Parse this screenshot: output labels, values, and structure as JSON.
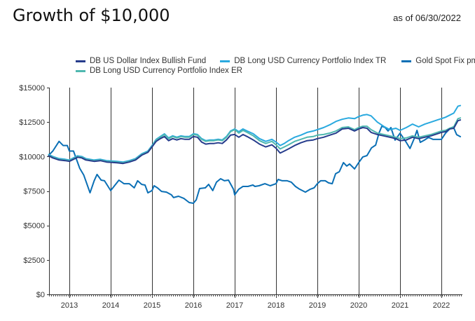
{
  "header": {
    "title": "Growth of $10,000",
    "as_of": "as of 06/30/2022"
  },
  "chart_data": {
    "type": "line",
    "title": "Growth of $10,000",
    "subtitle": "as of 06/30/2022",
    "xlabel": "",
    "ylabel": "",
    "xlim": [
      2012.5,
      2022.5
    ],
    "ylim": [
      0,
      15000
    ],
    "x_ticks": [
      2013,
      2014,
      2015,
      2016,
      2017,
      2018,
      2019,
      2020,
      2021,
      2022
    ],
    "x_tick_labels": [
      "2013",
      "2014",
      "2015",
      "2016",
      "2017",
      "2018",
      "2019",
      "2020",
      "2021",
      "2022"
    ],
    "y_ticks": [
      0,
      2500,
      5000,
      7500,
      10000,
      12500,
      15000
    ],
    "y_tick_labels": [
      "$0",
      "$2500",
      "$5000",
      "$7500",
      "$10000",
      "$12500",
      "$15000"
    ],
    "grid": "vertical lines at year ticks",
    "legend_position": "top",
    "series": [
      {
        "name": "DB US Dollar Index Bullish Fund",
        "color": "#263c8c",
        "x": [
          2012.5,
          2012.6,
          2012.75,
          2012.9,
          2013.0,
          2013.1,
          2013.2,
          2013.3,
          2013.4,
          2013.5,
          2013.6,
          2013.75,
          2013.9,
          2014.0,
          2014.15,
          2014.3,
          2014.45,
          2014.6,
          2014.75,
          2014.9,
          2015.0,
          2015.1,
          2015.2,
          2015.3,
          2015.4,
          2015.5,
          2015.6,
          2015.7,
          2015.8,
          2015.9,
          2016.0,
          2016.1,
          2016.2,
          2016.3,
          2016.4,
          2016.5,
          2016.6,
          2016.7,
          2016.8,
          2016.9,
          2017.0,
          2017.1,
          2017.2,
          2017.3,
          2017.45,
          2017.6,
          2017.75,
          2017.9,
          2018.0,
          2018.1,
          2018.2,
          2018.3,
          2018.45,
          2018.6,
          2018.75,
          2018.9,
          2019.0,
          2019.15,
          2019.3,
          2019.45,
          2019.6,
          2019.75,
          2019.9,
          2020.0,
          2020.1,
          2020.2,
          2020.3,
          2020.45,
          2020.6,
          2020.75,
          2020.9,
          2021.0,
          2021.15,
          2021.3,
          2021.45,
          2021.6,
          2021.75,
          2021.9,
          2022.0,
          2022.1,
          2022.2,
          2022.3,
          2022.4,
          2022.46
        ],
        "values": [
          10050,
          9900,
          9750,
          9700,
          9650,
          9800,
          9950,
          9900,
          9750,
          9700,
          9650,
          9700,
          9600,
          9580,
          9550,
          9500,
          9600,
          9750,
          10100,
          10300,
          10700,
          11100,
          11300,
          11450,
          11150,
          11300,
          11200,
          11300,
          11250,
          11250,
          11450,
          11400,
          11050,
          10900,
          10950,
          10950,
          11000,
          10950,
          11200,
          11550,
          11600,
          11400,
          11600,
          11450,
          11200,
          10900,
          10700,
          10850,
          10600,
          10250,
          10400,
          10550,
          10800,
          11000,
          11150,
          11200,
          11300,
          11400,
          11550,
          11700,
          12000,
          12050,
          11850,
          12000,
          12100,
          12050,
          11750,
          11600,
          11500,
          11400,
          11300,
          11150,
          11200,
          11400,
          11300,
          11400,
          11500,
          11650,
          11750,
          11800,
          12000,
          12050,
          12600,
          12650
        ]
      },
      {
        "name": "DB Long USD Currency Portfolio Index TR",
        "color": "#29a9df",
        "x": [
          2012.5,
          2012.6,
          2012.75,
          2012.9,
          2013.0,
          2013.1,
          2013.2,
          2013.3,
          2013.4,
          2013.5,
          2013.6,
          2013.75,
          2013.9,
          2014.0,
          2014.15,
          2014.3,
          2014.45,
          2014.6,
          2014.75,
          2014.9,
          2015.0,
          2015.1,
          2015.2,
          2015.3,
          2015.4,
          2015.5,
          2015.6,
          2015.7,
          2015.8,
          2015.9,
          2016.0,
          2016.1,
          2016.2,
          2016.3,
          2016.4,
          2016.5,
          2016.6,
          2016.7,
          2016.8,
          2016.9,
          2017.0,
          2017.1,
          2017.2,
          2017.3,
          2017.45,
          2017.6,
          2017.75,
          2017.9,
          2018.0,
          2018.1,
          2018.2,
          2018.3,
          2018.45,
          2018.6,
          2018.75,
          2018.9,
          2019.0,
          2019.15,
          2019.3,
          2019.45,
          2019.6,
          2019.75,
          2019.9,
          2020.0,
          2020.1,
          2020.2,
          2020.3,
          2020.45,
          2020.6,
          2020.75,
          2020.9,
          2021.0,
          2021.15,
          2021.3,
          2021.45,
          2021.6,
          2021.75,
          2021.9,
          2022.0,
          2022.1,
          2022.2,
          2022.3,
          2022.4,
          2022.46
        ],
        "values": [
          10150,
          10000,
          9850,
          9800,
          9750,
          9900,
          10050,
          10000,
          9850,
          9800,
          9750,
          9800,
          9700,
          9680,
          9650,
          9600,
          9700,
          9850,
          10200,
          10400,
          10800,
          11250,
          11450,
          11650,
          11350,
          11500,
          11400,
          11500,
          11450,
          11450,
          11650,
          11600,
          11300,
          11150,
          11200,
          11200,
          11250,
          11200,
          11450,
          11850,
          12000,
          11800,
          12000,
          11850,
          11650,
          11300,
          11100,
          11250,
          11050,
          10800,
          10950,
          11150,
          11400,
          11550,
          11750,
          11850,
          11950,
          12100,
          12300,
          12550,
          12700,
          12800,
          12750,
          12900,
          13000,
          13050,
          12950,
          12500,
          12200,
          11950,
          12050,
          11900,
          12100,
          12350,
          12150,
          12350,
          12500,
          12650,
          12750,
          12850,
          13000,
          13150,
          13650,
          13700
        ]
      },
      {
        "name": "Gold Spot Fix pm",
        "color": "#0a6fb5",
        "x": [
          2012.5,
          2012.6,
          2012.75,
          2012.85,
          2012.95,
          2013.0,
          2013.1,
          2013.25,
          2013.35,
          2013.5,
          2013.6,
          2013.67,
          2013.77,
          2013.85,
          2014.0,
          2014.2,
          2014.32,
          2014.45,
          2014.57,
          2014.65,
          2014.75,
          2014.83,
          2014.9,
          2015.0,
          2015.05,
          2015.13,
          2015.23,
          2015.35,
          2015.47,
          2015.52,
          2015.64,
          2015.77,
          2015.9,
          2016.0,
          2016.07,
          2016.15,
          2016.29,
          2016.37,
          2016.47,
          2016.56,
          2016.66,
          2016.75,
          2016.85,
          2016.97,
          2017.0,
          2017.1,
          2017.2,
          2017.32,
          2017.44,
          2017.49,
          2017.59,
          2017.73,
          2017.86,
          2018.0,
          2018.05,
          2018.15,
          2018.27,
          2018.37,
          2018.47,
          2018.57,
          2018.71,
          2018.83,
          2018.92,
          2019.0,
          2019.08,
          2019.19,
          2019.27,
          2019.36,
          2019.44,
          2019.53,
          2019.63,
          2019.71,
          2019.78,
          2019.9,
          2020.0,
          2020.1,
          2020.2,
          2020.31,
          2020.41,
          2020.49,
          2020.56,
          2020.64,
          2020.71,
          2020.78,
          2020.88,
          2021.0,
          2021.07,
          2021.15,
          2021.24,
          2021.34,
          2021.41,
          2021.49,
          2021.59,
          2021.69,
          2021.8,
          2021.9,
          2022.0,
          2022.1,
          2022.2,
          2022.29,
          2022.37,
          2022.46
        ],
        "values": [
          10100,
          10400,
          11100,
          10800,
          10800,
          10400,
          10400,
          9150,
          8650,
          7370,
          8240,
          8700,
          8290,
          8240,
          7530,
          8290,
          8030,
          8030,
          7730,
          8240,
          7980,
          7930,
          7370,
          7530,
          7880,
          7730,
          7470,
          7420,
          7220,
          7020,
          7120,
          6960,
          6660,
          6610,
          6860,
          7680,
          7730,
          7980,
          7530,
          8140,
          8390,
          8240,
          8290,
          7630,
          7220,
          7630,
          7830,
          7830,
          7930,
          7830,
          7880,
          8030,
          7880,
          8030,
          8340,
          8240,
          8240,
          8140,
          7830,
          7630,
          7420,
          7630,
          7730,
          8030,
          8240,
          8240,
          8090,
          8030,
          8750,
          8900,
          9560,
          9310,
          9460,
          9100,
          9560,
          9970,
          10070,
          10630,
          10830,
          11690,
          12200,
          12100,
          11850,
          12100,
          11190,
          11690,
          11390,
          11030,
          10580,
          11290,
          11900,
          11030,
          11190,
          11390,
          11240,
          11240,
          11240,
          11690,
          12000,
          12150,
          11590,
          11440
        ]
      },
      {
        "name": "DB Long USD Currency Portfolio Index ER",
        "color": "#4fb8b0",
        "x": [
          2012.5,
          2012.6,
          2012.75,
          2012.9,
          2013.0,
          2013.1,
          2013.2,
          2013.3,
          2013.4,
          2013.5,
          2013.6,
          2013.75,
          2013.9,
          2014.0,
          2014.15,
          2014.3,
          2014.45,
          2014.6,
          2014.75,
          2014.9,
          2015.0,
          2015.1,
          2015.2,
          2015.3,
          2015.4,
          2015.5,
          2015.6,
          2015.7,
          2015.8,
          2015.9,
          2016.0,
          2016.1,
          2016.2,
          2016.3,
          2016.4,
          2016.5,
          2016.6,
          2016.7,
          2016.8,
          2016.9,
          2017.0,
          2017.1,
          2017.2,
          2017.3,
          2017.45,
          2017.6,
          2017.75,
          2017.9,
          2018.0,
          2018.1,
          2018.2,
          2018.3,
          2018.45,
          2018.6,
          2018.75,
          2018.9,
          2019.0,
          2019.15,
          2019.3,
          2019.45,
          2019.6,
          2019.75,
          2019.9,
          2020.0,
          2020.1,
          2020.2,
          2020.3,
          2020.45,
          2020.6,
          2020.75,
          2020.9,
          2021.0,
          2021.15,
          2021.3,
          2021.45,
          2021.6,
          2021.75,
          2021.9,
          2022.0,
          2022.1,
          2022.2,
          2022.3,
          2022.4,
          2022.46
        ],
        "values": [
          10100,
          9950,
          9800,
          9750,
          9700,
          9850,
          10000,
          9950,
          9800,
          9750,
          9700,
          9750,
          9650,
          9630,
          9600,
          9550,
          9650,
          9800,
          10150,
          10350,
          10750,
          11200,
          11400,
          11600,
          11300,
          11450,
          11350,
          11450,
          11400,
          11400,
          11600,
          11550,
          11250,
          11100,
          11150,
          11150,
          11200,
          11150,
          11400,
          11800,
          11950,
          11700,
          11900,
          11750,
          11500,
          11150,
          10950,
          11100,
          10850,
          10550,
          10700,
          10850,
          11100,
          11250,
          11400,
          11450,
          11550,
          11600,
          11700,
          11850,
          12100,
          12150,
          11950,
          12100,
          12200,
          12200,
          11950,
          11700,
          11600,
          11500,
          11400,
          11300,
          11350,
          11500,
          11400,
          11500,
          11600,
          11750,
          11850,
          11900,
          12050,
          12150,
          12750,
          12800
        ]
      }
    ]
  }
}
